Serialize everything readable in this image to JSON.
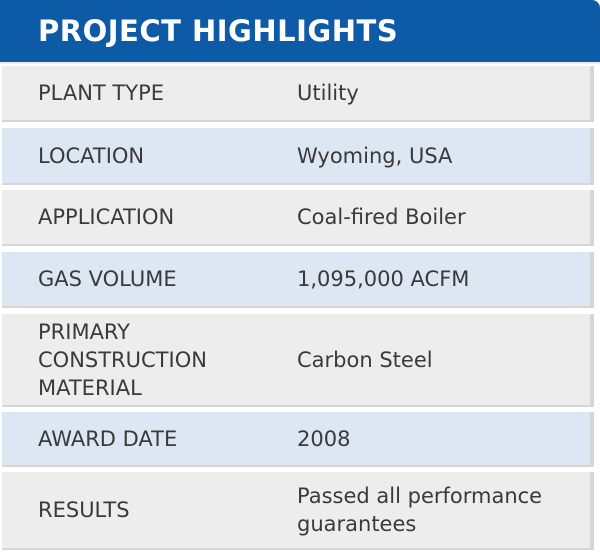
{
  "header": {
    "title": "PROJECT HIGHLIGHTS",
    "background_color": "#0d5aa7"
  },
  "rows": [
    {
      "label": "PLANT TYPE",
      "value": "Utility"
    },
    {
      "label": "LOCATION",
      "value": "Wyoming, USA"
    },
    {
      "label": "APPLICATION",
      "value": "Coal-fired Boiler"
    },
    {
      "label": "GAS VOLUME",
      "value": "1,095,000 ACFM"
    },
    {
      "label": "PRIMARY\nCONSTRUCTION\nMATERIAL",
      "value": "Carbon Steel"
    },
    {
      "label": "AWARD DATE",
      "value": "2008"
    },
    {
      "label": "RESULTS",
      "value": "Passed all performance\nguarantees"
    }
  ],
  "colors": {
    "row_gray": "#ededed",
    "row_blue": "#dde6f3",
    "text": "#3a3a3a"
  }
}
